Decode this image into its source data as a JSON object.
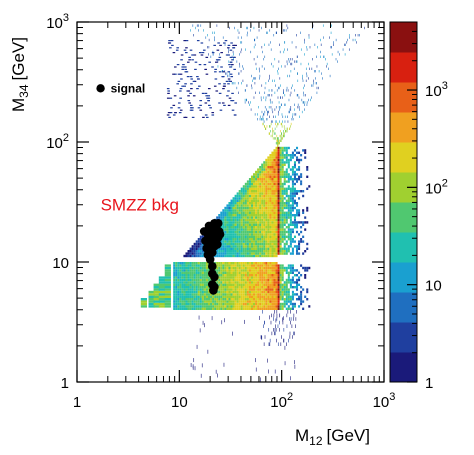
{
  "chart_data": {
    "type": "heatmap",
    "xlabel": "M",
    "xlabel_sub": "12",
    "xlabel_unit": "[GeV]",
    "ylabel": "M",
    "ylabel_sub": "34",
    "ylabel_unit": "[GeV]",
    "xscale": "log",
    "yscale": "log",
    "zscale": "log",
    "xlim": [
      1,
      1000
    ],
    "ylim": [
      1,
      1000
    ],
    "zlim": [
      1,
      5000
    ],
    "x_ticks": [
      {
        "value": 1,
        "base": "1",
        "exp": ""
      },
      {
        "value": 10,
        "base": "10",
        "exp": ""
      },
      {
        "value": 100,
        "base": "10",
        "exp": "2"
      },
      {
        "value": 1000,
        "base": "10",
        "exp": "3"
      }
    ],
    "y_ticks": [
      {
        "value": 1,
        "base": "1",
        "exp": ""
      },
      {
        "value": 10,
        "base": "10",
        "exp": ""
      },
      {
        "value": 100,
        "base": "10",
        "exp": "2"
      },
      {
        "value": 1000,
        "base": "10",
        "exp": "3"
      }
    ],
    "z_ticks": [
      {
        "value": 1,
        "base": "1",
        "exp": ""
      },
      {
        "value": 10,
        "base": "10",
        "exp": ""
      },
      {
        "value": 100,
        "base": "10",
        "exp": "2"
      },
      {
        "value": 1000,
        "base": "10",
        "exp": "3"
      }
    ],
    "colormap": [
      "#1a1a7a",
      "#1f3f9f",
      "#1f6fc0",
      "#1aa0d0",
      "#20c0b0",
      "#50c870",
      "#a0d030",
      "#e0d020",
      "#f0a020",
      "#e86018",
      "#d82010",
      "#8a1010"
    ],
    "annotations": [
      {
        "text": "signal",
        "marker": "filled-circle",
        "color": "#000000"
      },
      {
        "text": "SMZZ bkg",
        "color": "#e8141c"
      }
    ],
    "series": [
      {
        "name": "signal",
        "type": "scatter",
        "color": "#000000",
        "x": [
          17.5,
          18,
          18.5,
          19,
          19,
          19.5,
          20,
          20,
          20.5,
          21,
          21,
          21.5,
          22,
          22,
          22.5,
          23,
          23,
          23.5,
          24,
          24,
          24.5,
          25,
          21,
          22,
          21,
          22,
          21,
          21.5
        ],
        "y": [
          18,
          15,
          13,
          17,
          11.5,
          20,
          14,
          10.5,
          18,
          12,
          16,
          19,
          13.5,
          21,
          17,
          15,
          19.5,
          14,
          16,
          21,
          18,
          17,
          8,
          7.5,
          6.5,
          6.2,
          9.2,
          5.8
        ]
      },
      {
        "name": "SMZZ bkg",
        "type": "heatmap-bands",
        "peak_mass": 91,
        "description_x": [
          5,
          300
        ],
        "regions": [
          {
            "x": [
              12,
              91
            ],
            "y": [
              12,
              91
            ],
            "level": "upper-triangle"
          },
          {
            "x": [
              4,
              180
            ],
            "y": [
              4,
              9
            ],
            "level": "lower-band"
          },
          {
            "x": [
              88,
              95
            ],
            "y": [
              2,
              300
            ],
            "level": "z-peak-vertical"
          },
          {
            "x": [
              7,
              90
            ],
            "y": [
              160,
              700
            ],
            "level": "sparse-upper"
          }
        ]
      }
    ]
  }
}
